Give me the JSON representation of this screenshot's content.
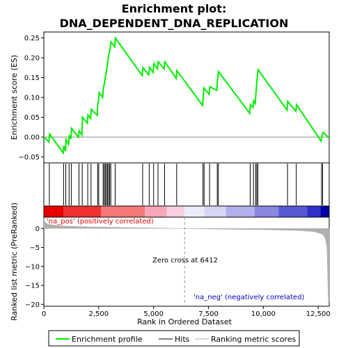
{
  "chart_data": {
    "type": "line",
    "title_line1": "Enrichment plot:",
    "title_line2": "DNA_DEPENDENT_DNA_REPLICATION",
    "es_ylabel": "Enrichment score (ES)",
    "rank_ylabel": "Ranked list metric (PreRanked)",
    "xlabel": "Rank in Ordered Dataset",
    "xlim": [
      0,
      13000
    ],
    "es_ylim": [
      -0.065,
      0.265
    ],
    "rank_ylim": [
      -20.5,
      3
    ],
    "x_ticks": [
      0,
      2500,
      5000,
      7500,
      10000,
      12500
    ],
    "x_tick_labels": [
      "0",
      "2,500",
      "5,000",
      "7,500",
      "10,000",
      "12,500"
    ],
    "es_ticks": [
      -0.05,
      0.0,
      0.05,
      0.1,
      0.15,
      0.2,
      0.25
    ],
    "es_tick_labels": [
      "−0.05",
      "0.00",
      "0.05",
      "0.10",
      "0.15",
      "0.20",
      "0.25"
    ],
    "rank_ticks": [
      0,
      -5,
      -10,
      -15,
      -20
    ],
    "rank_tick_labels": [
      "0",
      "−5",
      "−10",
      "−15",
      "−20"
    ],
    "hits": [
      250,
      900,
      1000,
      1150,
      1250,
      1600,
      1750,
      2000,
      2150,
      2450,
      2500,
      2700,
      2750,
      2800,
      2850,
      2900,
      2950,
      3000,
      3050,
      3250,
      4500,
      4800,
      5000,
      5200,
      5500,
      6050,
      7250,
      7300,
      7550,
      7900,
      7950,
      9400,
      9550,
      9650,
      9700,
      9750,
      11100,
      11500,
      12650,
      12700
    ],
    "es_curve": [
      [
        0,
        0.0
      ],
      [
        230,
        -0.012
      ],
      [
        260,
        0.008
      ],
      [
        880,
        -0.04
      ],
      [
        910,
        -0.022
      ],
      [
        990,
        -0.035
      ],
      [
        1010,
        -0.006
      ],
      [
        1130,
        -0.018
      ],
      [
        1160,
        0.005
      ],
      [
        1230,
        -0.005
      ],
      [
        1260,
        0.022
      ],
      [
        1580,
        0.0
      ],
      [
        1610,
        0.016
      ],
      [
        1730,
        0.005
      ],
      [
        1760,
        0.05
      ],
      [
        1980,
        0.035
      ],
      [
        2010,
        0.056
      ],
      [
        2130,
        0.047
      ],
      [
        2160,
        0.07
      ],
      [
        2430,
        0.055
      ],
      [
        2460,
        0.085
      ],
      [
        2490,
        0.09
      ],
      [
        2520,
        0.112
      ],
      [
        2680,
        0.1
      ],
      [
        2710,
        0.122
      ],
      [
        2740,
        0.13
      ],
      [
        2780,
        0.142
      ],
      [
        2820,
        0.158
      ],
      [
        2860,
        0.168
      ],
      [
        2890,
        0.18
      ],
      [
        2930,
        0.2
      ],
      [
        2970,
        0.21
      ],
      [
        3010,
        0.222
      ],
      [
        3060,
        0.24
      ],
      [
        3230,
        0.228
      ],
      [
        3260,
        0.25
      ],
      [
        4480,
        0.155
      ],
      [
        4510,
        0.175
      ],
      [
        4780,
        0.157
      ],
      [
        4810,
        0.176
      ],
      [
        4980,
        0.163
      ],
      [
        5010,
        0.185
      ],
      [
        5180,
        0.172
      ],
      [
        5210,
        0.19
      ],
      [
        5480,
        0.172
      ],
      [
        5510,
        0.19
      ],
      [
        6030,
        0.148
      ],
      [
        6060,
        0.168
      ],
      [
        7230,
        0.08
      ],
      [
        7260,
        0.1
      ],
      [
        7290,
        0.124
      ],
      [
        7530,
        0.108
      ],
      [
        7560,
        0.127
      ],
      [
        7880,
        0.118
      ],
      [
        7910,
        0.145
      ],
      [
        7960,
        0.165
      ],
      [
        9380,
        0.06
      ],
      [
        9410,
        0.082
      ],
      [
        9530,
        0.075
      ],
      [
        9560,
        0.092
      ],
      [
        9630,
        0.085
      ],
      [
        9660,
        0.11
      ],
      [
        9690,
        0.13
      ],
      [
        9720,
        0.15
      ],
      [
        9760,
        0.17
      ],
      [
        11080,
        0.068
      ],
      [
        11110,
        0.09
      ],
      [
        11480,
        0.065
      ],
      [
        11510,
        0.082
      ],
      [
        12630,
        -0.01
      ],
      [
        12680,
        0.005
      ],
      [
        12720,
        0.012
      ],
      [
        13000,
        -0.002
      ]
    ],
    "zero_cross": 6412,
    "zero_cross_label": "Zero cross at 6412",
    "pos_label": "'na_pos' (positively correlated)",
    "neg_label": "'na_neg' (negatively correlated)",
    "rank_metric": [
      [
        0,
        2.6
      ],
      [
        60,
        1.6
      ],
      [
        200,
        1.1
      ],
      [
        800,
        0.7
      ],
      [
        2000,
        0.45
      ],
      [
        4000,
        0.25
      ],
      [
        6412,
        0.0
      ],
      [
        8000,
        -0.15
      ],
      [
        10000,
        -0.3
      ],
      [
        11500,
        -0.5
      ],
      [
        12300,
        -0.8
      ],
      [
        12700,
        -1.5
      ],
      [
        12820,
        -2.5
      ],
      [
        12900,
        -5
      ],
      [
        12960,
        -19.5
      ],
      [
        13000,
        -19.5
      ]
    ],
    "colorbar_segments": [
      {
        "from": 0,
        "to": 900,
        "color": "#e80000"
      },
      {
        "from": 900,
        "to": 2600,
        "color": "#f03030"
      },
      {
        "from": 2600,
        "to": 4600,
        "color": "#f47878"
      },
      {
        "from": 4600,
        "to": 5600,
        "color": "#f7a8b8"
      },
      {
        "from": 5600,
        "to": 6412,
        "color": "#f8d0e0"
      },
      {
        "from": 6412,
        "to": 7300,
        "color": "#ececf8"
      },
      {
        "from": 7300,
        "to": 8300,
        "color": "#d6d6f2"
      },
      {
        "from": 8300,
        "to": 9600,
        "color": "#b0b0ea"
      },
      {
        "from": 9600,
        "to": 10700,
        "color": "#8888e0"
      },
      {
        "from": 10700,
        "to": 12000,
        "color": "#5858d4"
      },
      {
        "from": 12000,
        "to": 12600,
        "color": "#3030c8"
      },
      {
        "from": 12600,
        "to": 13000,
        "color": "#0000a8"
      }
    ],
    "legend": [
      "Enrichment profile",
      "Hits",
      "Ranking metric scores"
    ],
    "colors": {
      "profile": "#00ee00",
      "hits": "#000000",
      "metric": "#b0b0b0"
    }
  }
}
